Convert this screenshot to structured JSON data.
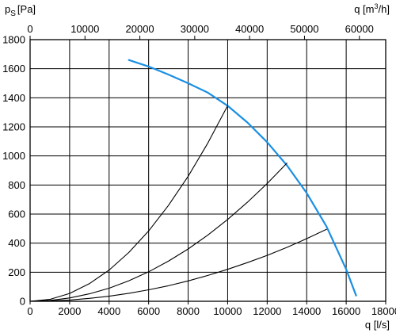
{
  "chart_data": {
    "type": "line",
    "y_axis": {
      "label": "p",
      "label_sub": "S",
      "label_unit": "[Pa]",
      "range": [
        0,
        1800
      ],
      "ticks": [
        0,
        200,
        400,
        600,
        800,
        1000,
        1200,
        1400,
        1600,
        1800
      ]
    },
    "x_axis_bottom": {
      "label": "q [l/s]",
      "range": [
        0,
        18000
      ],
      "ticks": [
        0,
        2000,
        4000,
        6000,
        8000,
        10000,
        12000,
        14000,
        16000,
        18000
      ]
    },
    "x_axis_top": {
      "label_prefix": "q [m",
      "label_sup": "3",
      "label_suffix": "/h]",
      "range_l_per_s": [
        0,
        18000
      ],
      "ticks": [
        0,
        10000,
        20000,
        30000,
        40000,
        50000,
        60000
      ],
      "conversion_factor_m3h_per_l_s": 3.6
    },
    "grid": true,
    "series": [
      {
        "role": "fan curve",
        "color": "#1a8fe3",
        "x": [
          5000,
          6000,
          7000,
          8000,
          9000,
          10000,
          11000,
          12000,
          13000,
          14000,
          15000,
          16000,
          16500
        ],
        "y": [
          1660,
          1615,
          1560,
          1500,
          1435,
          1345,
          1230,
          1095,
          935,
          745,
          515,
          220,
          40
        ]
      },
      {
        "role": "system curve",
        "color": "#000000",
        "x": [
          0,
          1000,
          2000,
          3000,
          4000,
          5000,
          6000,
          7000,
          8000,
          9000,
          10000
        ],
        "y": [
          0,
          13,
          54,
          121,
          215,
          336,
          484,
          659,
          860,
          1089,
          1345
        ]
      },
      {
        "role": "system curve",
        "color": "#000000",
        "x": [
          0,
          1000,
          2000,
          3000,
          4000,
          5000,
          6000,
          7000,
          8000,
          9000,
          10000,
          11000,
          12000,
          13000
        ],
        "y": [
          0,
          6,
          23,
          51,
          90,
          141,
          203,
          276,
          360,
          456,
          563,
          681,
          810,
          950
        ]
      },
      {
        "role": "system curve",
        "color": "#000000",
        "x": [
          0,
          1000,
          2000,
          3000,
          4000,
          5000,
          6000,
          7000,
          8000,
          9000,
          10000,
          11000,
          12000,
          13000,
          14000,
          15000
        ],
        "y": [
          0,
          2,
          9,
          20,
          35,
          55,
          79,
          107,
          140,
          178,
          220,
          266,
          316,
          371,
          431,
          495
        ]
      }
    ]
  }
}
